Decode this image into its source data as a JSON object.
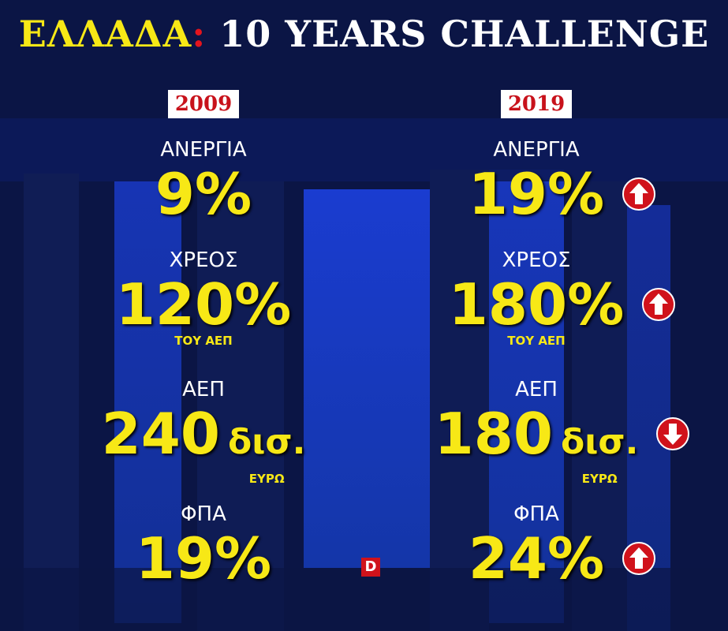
{
  "title": {
    "country": "ΕΛΛΑΔΑ",
    "separator": ":",
    "text": "10 YEARS CHALLENGE"
  },
  "columns": [
    {
      "year": "2009",
      "items": [
        {
          "label": "ΑΝΕΡΓΙΑ",
          "value": "9%"
        },
        {
          "label": "ΧΡΕΟΣ",
          "value": "120%",
          "note": "ΤΟΥ ΑΕΠ"
        },
        {
          "label": "ΑΕΠ",
          "value": "240",
          "unit": "δισ.",
          "note": "ΕΥΡΩ"
        },
        {
          "label": "ΦΠΑ",
          "value": "19%"
        }
      ]
    },
    {
      "year": "2019",
      "items": [
        {
          "label": "ΑΝΕΡΓΙΑ",
          "value": "19%",
          "trend": "up"
        },
        {
          "label": "ΧΡΕΟΣ",
          "value": "180%",
          "note": "ΤΟΥ ΑΕΠ",
          "trend": "up"
        },
        {
          "label": "ΑΕΠ",
          "value": "180",
          "unit": "δισ.",
          "note": "ΕΥΡΩ",
          "trend": "down"
        },
        {
          "label": "ΦΠΑ",
          "value": "24%",
          "trend": "up"
        }
      ]
    }
  ],
  "logo": "D"
}
